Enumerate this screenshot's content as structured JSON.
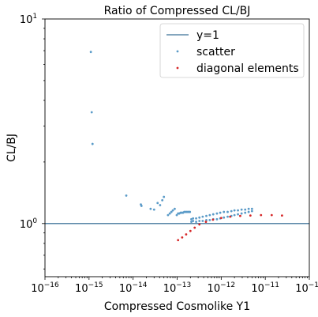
{
  "chart_data": {
    "type": "scatter",
    "title": "Ratio of Compressed CL/BJ",
    "xlabel": "Compressed Cosmolike Y1",
    "ylabel": "CL/BJ",
    "xscale": "log",
    "yscale": "log",
    "xlim": [
      1e-16,
      1e-10
    ],
    "ylim": [
      0.55,
      10
    ],
    "x_major_ticks": [
      {
        "value": 1e-16,
        "base": "10",
        "exp": "−16"
      },
      {
        "value": 1e-15,
        "base": "10",
        "exp": "−15"
      },
      {
        "value": 1e-14,
        "base": "10",
        "exp": "−14"
      },
      {
        "value": 1e-13,
        "base": "10",
        "exp": "−13"
      },
      {
        "value": 1e-12,
        "base": "10",
        "exp": "−12"
      },
      {
        "value": 1e-11,
        "base": "10",
        "exp": "−11"
      },
      {
        "value": 1e-10,
        "base": "10",
        "exp": "−10"
      }
    ],
    "y_major_ticks": [
      {
        "value": 1,
        "base": "10",
        "exp": "0"
      },
      {
        "value": 10,
        "base": "10",
        "exp": "1"
      }
    ],
    "grid": false,
    "legend_position": "top-right",
    "colors": {
      "line": "#5b88a8",
      "scatter": "#5b9bc8",
      "diagonal": "#d62728"
    },
    "series": [
      {
        "name": "y=1",
        "kind": "line",
        "y": 1
      },
      {
        "name": "scatter",
        "kind": "scatter",
        "points": [
          [
            1.1e-15,
            6.9
          ],
          [
            1.15e-15,
            3.5
          ],
          [
            1.2e-15,
            2.45
          ],
          [
            7e-15,
            1.37
          ],
          [
            1.5e-14,
            1.24
          ],
          [
            1.55e-14,
            1.22
          ],
          [
            2.5e-14,
            1.18
          ],
          [
            3e-14,
            1.17
          ],
          [
            3.6e-14,
            1.26
          ],
          [
            4.1e-14,
            1.23
          ],
          [
            4.6e-14,
            1.3
          ],
          [
            5e-14,
            1.35
          ],
          [
            6.2e-14,
            1.1
          ],
          [
            6.8e-14,
            1.12
          ],
          [
            7.4e-14,
            1.14
          ],
          [
            8e-14,
            1.16
          ],
          [
            8.8e-14,
            1.18
          ],
          [
            9.8e-14,
            1.1
          ],
          [
            1.05e-13,
            1.12
          ],
          [
            1.12e-13,
            1.12
          ],
          [
            1.2e-13,
            1.13
          ],
          [
            1.28e-13,
            1.13
          ],
          [
            1.36e-13,
            1.13
          ],
          [
            1.45e-13,
            1.14
          ],
          [
            1.55e-13,
            1.14
          ],
          [
            1.65e-13,
            1.14
          ],
          [
            1.75e-13,
            1.14
          ],
          [
            1.85e-13,
            1.14
          ],
          [
            1.95e-13,
            1.14
          ],
          [
            2.1e-13,
            1.02
          ],
          [
            2.1e-13,
            1.05
          ],
          [
            2.3e-13,
            1.03
          ],
          [
            2.3e-13,
            1.06
          ],
          [
            2.7e-13,
            1.02
          ],
          [
            2.7e-13,
            1.06
          ],
          [
            3.2e-13,
            1.03
          ],
          [
            3.2e-13,
            1.07
          ],
          [
            3.8e-13,
            1.03
          ],
          [
            3.8e-13,
            1.08
          ],
          [
            4.6e-13,
            1.04
          ],
          [
            4.6e-13,
            1.09
          ],
          [
            5.5e-13,
            1.04
          ],
          [
            5.5e-13,
            1.1
          ],
          [
            6.6e-13,
            1.05
          ],
          [
            6.6e-13,
            1.11
          ],
          [
            8e-13,
            1.05
          ],
          [
            8e-13,
            1.12
          ],
          [
            9.5e-13,
            1.06
          ],
          [
            9.5e-13,
            1.13
          ],
          [
            1.15e-12,
            1.07
          ],
          [
            1.15e-12,
            1.14
          ],
          [
            1.4e-12,
            1.08
          ],
          [
            1.4e-12,
            1.14
          ],
          [
            1.7e-12,
            1.09
          ],
          [
            1.7e-12,
            1.15
          ],
          [
            2e-12,
            1.1
          ],
          [
            2e-12,
            1.16
          ],
          [
            2.4e-12,
            1.11
          ],
          [
            2.4e-12,
            1.16
          ],
          [
            2.9e-12,
            1.12
          ],
          [
            2.9e-12,
            1.17
          ],
          [
            3.5e-12,
            1.13
          ],
          [
            3.5e-12,
            1.17
          ],
          [
            4.2e-12,
            1.14
          ],
          [
            4.2e-12,
            1.18
          ],
          [
            5e-12,
            1.15
          ],
          [
            5e-12,
            1.18
          ]
        ]
      },
      {
        "name": "diagonal elements",
        "kind": "scatter",
        "points": [
          [
            1.05e-13,
            0.83
          ],
          [
            1.3e-13,
            0.855
          ],
          [
            1.6e-13,
            0.885
          ],
          [
            2e-13,
            0.92
          ],
          [
            2.5e-13,
            0.955
          ],
          [
            3.2e-13,
            0.99
          ],
          [
            4.5e-13,
            1.02
          ],
          [
            6.5e-13,
            1.045
          ],
          [
            1e-12,
            1.065
          ],
          [
            1.6e-12,
            1.08
          ],
          [
            2.7e-12,
            1.09
          ],
          [
            4.6e-12,
            1.095
          ],
          [
            8e-12,
            1.1
          ],
          [
            1.4e-11,
            1.1
          ],
          [
            2.4e-11,
            1.095
          ]
        ]
      }
    ]
  }
}
